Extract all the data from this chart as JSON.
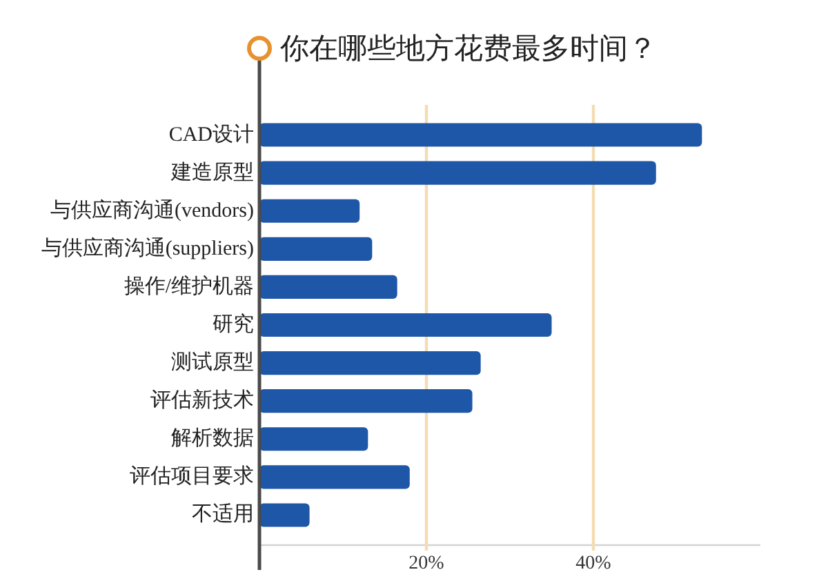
{
  "chart_data": {
    "type": "bar",
    "orientation": "horizontal",
    "title": "你在哪些地方花费最多时间？",
    "categories": [
      "CAD设计",
      "建造原型",
      "与供应商沟通(vendors)",
      "与供应商沟通(suppliers)",
      "操作/维护机器",
      "研究",
      "测试原型",
      "评估新技术",
      "解析数据",
      "评估项目要求",
      "不适用"
    ],
    "values": [
      53,
      47.5,
      12,
      13.5,
      16.5,
      35,
      26.5,
      25.5,
      13,
      18,
      6
    ],
    "color": "#1e56a8",
    "xlim": [
      0,
      60
    ],
    "xticks": [
      {
        "value": 20,
        "label": "20%"
      },
      {
        "value": 40,
        "label": "40%"
      }
    ],
    "grid": "x"
  }
}
